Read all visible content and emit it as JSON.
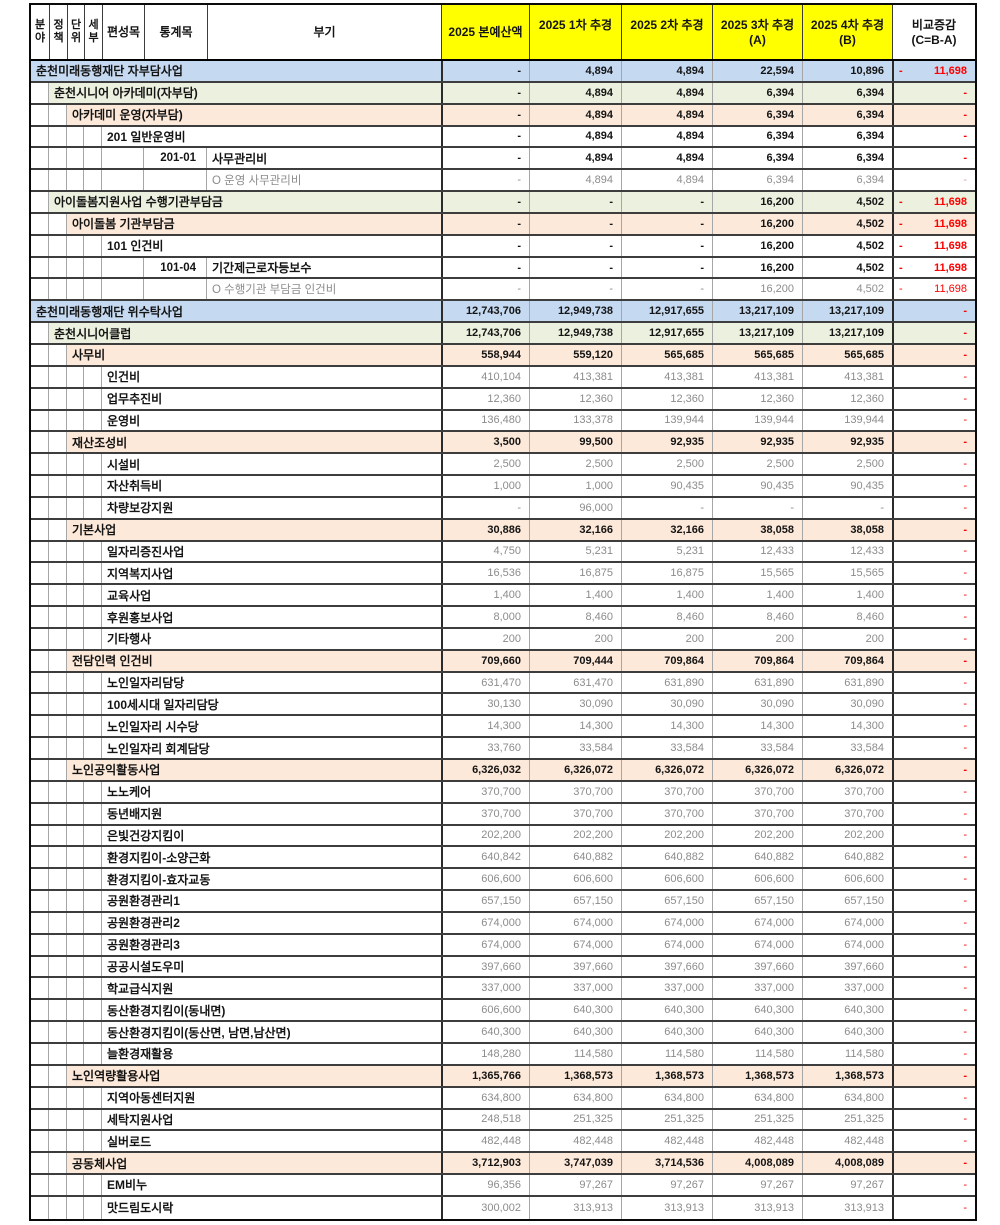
{
  "colors": {
    "header_highlight": "#FFFF00",
    "level1_row_bg": "#C5D9F1",
    "level2_row_bg": "#EBF1DE",
    "level3_row_bg": "#FDE9D9",
    "negative_value": "#FF0000",
    "muted_value": "#8c8c8c"
  },
  "header": {
    "cols": [
      {
        "line1": "분",
        "line2": "야"
      },
      {
        "line1": "정",
        "line2": "책"
      },
      {
        "line1": "단",
        "line2": "위"
      },
      {
        "line1": "세",
        "line2": "부"
      },
      {
        "label": "편성목"
      },
      {
        "label": "통계목"
      },
      {
        "label": "부기"
      },
      {
        "label": "2025 본예산액",
        "highlight": true
      },
      {
        "label": "2025 1차 추경",
        "sub": "",
        "highlight": true
      },
      {
        "label": "2025 2차 추경",
        "sub": "",
        "highlight": true
      },
      {
        "label": "2025 3차 추경",
        "sub": "(A)",
        "highlight": true
      },
      {
        "label": "2025 4차 추경",
        "sub": "(B)",
        "highlight": true
      },
      {
        "label": "비교증감",
        "sub": "(C=B-A)",
        "highlight": false
      }
    ]
  },
  "rows": [
    {
      "level": "l1",
      "label": "춘천미래동행재단 자부담사업",
      "values": [
        "-",
        "4,894",
        "4,894",
        "22,594",
        "10,896"
      ],
      "diff": "11,698",
      "negative": true
    },
    {
      "level": "l2",
      "label": "춘천시니어 아카데미(자부담)",
      "values": [
        "-",
        "4,894",
        "4,894",
        "6,394",
        "6,394"
      ],
      "diff": "-",
      "negative": false
    },
    {
      "level": "l3",
      "label": "아카데미 운영(자부담)",
      "values": [
        "-",
        "4,894",
        "4,894",
        "6,394",
        "6,394"
      ],
      "diff": "-",
      "negative": false
    },
    {
      "level": "l4",
      "label": "201 일반운영비",
      "values": [
        "-",
        "4,894",
        "4,894",
        "6,394",
        "6,394"
      ],
      "diff": "-",
      "negative": false
    },
    {
      "level": "l5",
      "code": "201-01",
      "label": "사무관리비",
      "values": [
        "-",
        "4,894",
        "4,894",
        "6,394",
        "6,394"
      ],
      "diff": "-",
      "negative": false
    },
    {
      "level": "note",
      "label": "O 운영 사무관리비",
      "values": [
        "-",
        "4,894",
        "4,894",
        "6,394",
        "6,394"
      ],
      "diff": "-",
      "negative": false
    },
    {
      "level": "l2",
      "label": "아이돌봄지원사업 수행기관부담금",
      "values": [
        "-",
        "-",
        "-",
        "16,200",
        "4,502"
      ],
      "diff": "11,698",
      "negative": true
    },
    {
      "level": "l3",
      "label": "아이돌봄 기관부담금",
      "values": [
        "-",
        "-",
        "-",
        "16,200",
        "4,502"
      ],
      "diff": "11,698",
      "negative": true
    },
    {
      "level": "l4",
      "label": "101 인건비",
      "values": [
        "-",
        "-",
        "-",
        "16,200",
        "4,502"
      ],
      "diff": "11,698",
      "negative": true
    },
    {
      "level": "l5",
      "code": "101-04",
      "label": "기간제근로자등보수",
      "values": [
        "-",
        "-",
        "-",
        "16,200",
        "4,502"
      ],
      "diff": "11,698",
      "negative": true
    },
    {
      "level": "note",
      "label": "O 수행기관 부담금 인건비",
      "values": [
        "-",
        "-",
        "-",
        "16,200",
        "4,502"
      ],
      "diff": "11,698",
      "negative": true
    },
    {
      "level": "l1",
      "label": "춘천미래동행재단 위수탁사업",
      "values": [
        "12,743,706",
        "12,949,738",
        "12,917,655",
        "13,217,109",
        "13,217,109"
      ],
      "diff": "-",
      "negative": false
    },
    {
      "level": "l2",
      "label": "춘천시니어클럽",
      "values": [
        "12,743,706",
        "12,949,738",
        "12,917,655",
        "13,217,109",
        "13,217,109"
      ],
      "diff": "-",
      "negative": false
    },
    {
      "level": "l3",
      "label": "사무비",
      "values": [
        "558,944",
        "559,120",
        "565,685",
        "565,685",
        "565,685"
      ],
      "diff": "-",
      "negative": false
    },
    {
      "level": "l4g",
      "label": "인건비",
      "values": [
        "410,104",
        "413,381",
        "413,381",
        "413,381",
        "413,381"
      ],
      "diff": "-",
      "negative": false
    },
    {
      "level": "l4g",
      "label": "업무추진비",
      "values": [
        "12,360",
        "12,360",
        "12,360",
        "12,360",
        "12,360"
      ],
      "diff": "-",
      "negative": false
    },
    {
      "level": "l4g",
      "label": "운영비",
      "values": [
        "136,480",
        "133,378",
        "139,944",
        "139,944",
        "139,944"
      ],
      "diff": "-",
      "negative": false
    },
    {
      "level": "l3",
      "label": "재산조성비",
      "values": [
        "3,500",
        "99,500",
        "92,935",
        "92,935",
        "92,935"
      ],
      "diff": "-",
      "negative": false
    },
    {
      "level": "l4g",
      "label": "시설비",
      "values": [
        "2,500",
        "2,500",
        "2,500",
        "2,500",
        "2,500"
      ],
      "diff": "-",
      "negative": false
    },
    {
      "level": "l4g",
      "label": "자산취득비",
      "values": [
        "1,000",
        "1,000",
        "90,435",
        "90,435",
        "90,435"
      ],
      "diff": "-",
      "negative": false
    },
    {
      "level": "l4g",
      "label": "차량보강지원",
      "values": [
        "-",
        "96,000",
        "-",
        "-",
        "-"
      ],
      "diff": "-",
      "negative": false
    },
    {
      "level": "l3",
      "label": "기본사업",
      "values": [
        "30,886",
        "32,166",
        "32,166",
        "38,058",
        "38,058"
      ],
      "diff": "-",
      "negative": false
    },
    {
      "level": "l4g",
      "label": "일자리증진사업",
      "values": [
        "4,750",
        "5,231",
        "5,231",
        "12,433",
        "12,433"
      ],
      "diff": "-",
      "negative": false
    },
    {
      "level": "l4g",
      "label": "지역복지사업",
      "values": [
        "16,536",
        "16,875",
        "16,875",
        "15,565",
        "15,565"
      ],
      "diff": "-",
      "negative": false
    },
    {
      "level": "l4g",
      "label": "교육사업",
      "values": [
        "1,400",
        "1,400",
        "1,400",
        "1,400",
        "1,400"
      ],
      "diff": "-",
      "negative": false
    },
    {
      "level": "l4g",
      "label": "후원홍보사업",
      "values": [
        "8,000",
        "8,460",
        "8,460",
        "8,460",
        "8,460"
      ],
      "diff": "-",
      "negative": false
    },
    {
      "level": "l4g",
      "label": "기타행사",
      "values": [
        "200",
        "200",
        "200",
        "200",
        "200"
      ],
      "diff": "-",
      "negative": false
    },
    {
      "level": "l3",
      "label": "전담인력 인건비",
      "values": [
        "709,660",
        "709,444",
        "709,864",
        "709,864",
        "709,864"
      ],
      "diff": "-",
      "negative": false
    },
    {
      "level": "l4g",
      "label": "노인일자리담당",
      "values": [
        "631,470",
        "631,470",
        "631,890",
        "631,890",
        "631,890"
      ],
      "diff": "-",
      "negative": false
    },
    {
      "level": "l4g",
      "label": "100세시대 일자리담당",
      "values": [
        "30,130",
        "30,090",
        "30,090",
        "30,090",
        "30,090"
      ],
      "diff": "-",
      "negative": false
    },
    {
      "level": "l4g",
      "label": "노인일자리 시수당",
      "values": [
        "14,300",
        "14,300",
        "14,300",
        "14,300",
        "14,300"
      ],
      "diff": "-",
      "negative": false
    },
    {
      "level": "l4g",
      "label": "노인일자리 회계담당",
      "values": [
        "33,760",
        "33,584",
        "33,584",
        "33,584",
        "33,584"
      ],
      "diff": "-",
      "negative": false
    },
    {
      "level": "l3",
      "label": "노인공익활동사업",
      "values": [
        "6,326,032",
        "6,326,072",
        "6,326,072",
        "6,326,072",
        "6,326,072"
      ],
      "diff": "-",
      "negative": false
    },
    {
      "level": "l4g",
      "label": "노노케어",
      "values": [
        "370,700",
        "370,700",
        "370,700",
        "370,700",
        "370,700"
      ],
      "diff": "-",
      "negative": false
    },
    {
      "level": "l4g",
      "label": "동년배지원",
      "values": [
        "370,700",
        "370,700",
        "370,700",
        "370,700",
        "370,700"
      ],
      "diff": "-",
      "negative": false
    },
    {
      "level": "l4g",
      "label": "은빛건강지킴이",
      "values": [
        "202,200",
        "202,200",
        "202,200",
        "202,200",
        "202,200"
      ],
      "diff": "-",
      "negative": false
    },
    {
      "level": "l4g",
      "label": "환경지킴이-소양근화",
      "values": [
        "640,842",
        "640,882",
        "640,882",
        "640,882",
        "640,882"
      ],
      "diff": "-",
      "negative": false
    },
    {
      "level": "l4g",
      "label": "환경지킴이-효자교동",
      "values": [
        "606,600",
        "606,600",
        "606,600",
        "606,600",
        "606,600"
      ],
      "diff": "-",
      "negative": false
    },
    {
      "level": "l4g",
      "label": "공원환경관리1",
      "values": [
        "657,150",
        "657,150",
        "657,150",
        "657,150",
        "657,150"
      ],
      "diff": "-",
      "negative": false
    },
    {
      "level": "l4g",
      "label": "공원환경관리2",
      "values": [
        "674,000",
        "674,000",
        "674,000",
        "674,000",
        "674,000"
      ],
      "diff": "-",
      "negative": false
    },
    {
      "level": "l4g",
      "label": "공원환경관리3",
      "values": [
        "674,000",
        "674,000",
        "674,000",
        "674,000",
        "674,000"
      ],
      "diff": "-",
      "negative": false
    },
    {
      "level": "l4g",
      "label": "공공시설도우미",
      "values": [
        "397,660",
        "397,660",
        "397,660",
        "397,660",
        "397,660"
      ],
      "diff": "-",
      "negative": false
    },
    {
      "level": "l4g",
      "label": "학교급식지원",
      "values": [
        "337,000",
        "337,000",
        "337,000",
        "337,000",
        "337,000"
      ],
      "diff": "-",
      "negative": false
    },
    {
      "level": "l4g",
      "label": "동산환경지킴이(동내면)",
      "values": [
        "606,600",
        "640,300",
        "640,300",
        "640,300",
        "640,300"
      ],
      "diff": "-",
      "negative": false
    },
    {
      "level": "l4g",
      "label": "동산환경지킴이(동산면, 남면,남산면)",
      "values": [
        "640,300",
        "640,300",
        "640,300",
        "640,300",
        "640,300"
      ],
      "diff": "-",
      "negative": false
    },
    {
      "level": "l4g",
      "label": "늘환경재활용",
      "values": [
        "148,280",
        "114,580",
        "114,580",
        "114,580",
        "114,580"
      ],
      "diff": "-",
      "negative": false
    },
    {
      "level": "l3",
      "label": "노인역량활용사업",
      "values": [
        "1,365,766",
        "1,368,573",
        "1,368,573",
        "1,368,573",
        "1,368,573"
      ],
      "diff": "-",
      "negative": false
    },
    {
      "level": "l4g",
      "label": "지역아동센터지원",
      "values": [
        "634,800",
        "634,800",
        "634,800",
        "634,800",
        "634,800"
      ],
      "diff": "-",
      "negative": false
    },
    {
      "level": "l4g",
      "label": "세탁지원사업",
      "values": [
        "248,518",
        "251,325",
        "251,325",
        "251,325",
        "251,325"
      ],
      "diff": "-",
      "negative": false
    },
    {
      "level": "l4g",
      "label": "실버로드",
      "values": [
        "482,448",
        "482,448",
        "482,448",
        "482,448",
        "482,448"
      ],
      "diff": "-",
      "negative": false
    },
    {
      "level": "l3",
      "label": "공동체사업",
      "values": [
        "3,712,903",
        "3,747,039",
        "3,714,536",
        "4,008,089",
        "4,008,089"
      ],
      "diff": "-",
      "negative": false
    },
    {
      "level": "l4g",
      "label": "EM비누",
      "values": [
        "96,356",
        "97,267",
        "97,267",
        "97,267",
        "97,267"
      ],
      "diff": "-",
      "negative": false
    },
    {
      "level": "l4g",
      "label": "맛드림도시락",
      "values": [
        "300,002",
        "313,913",
        "313,913",
        "313,913",
        "313,913"
      ],
      "diff": "-",
      "negative": false
    }
  ]
}
